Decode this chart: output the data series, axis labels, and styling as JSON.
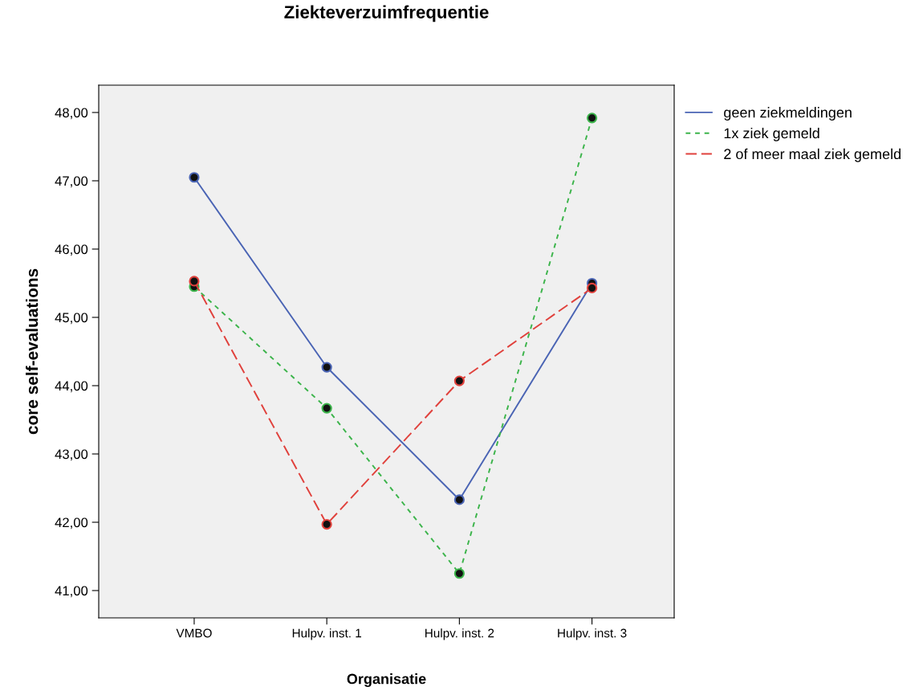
{
  "chart_data": {
    "type": "line",
    "title": "Ziekteverzuimfrequentie",
    "xlabel": "Organisatie",
    "ylabel": "core self-evaluations",
    "categories": [
      "VMBO",
      "Hulpv. inst. 1",
      "Hulpv. inst. 2",
      "Hulpv. inst. 3"
    ],
    "series": [
      {
        "name": "geen ziekmeldingen",
        "color": "#4a64b4",
        "line_style": "solid",
        "values": [
          47.05,
          44.27,
          42.33,
          45.5
        ]
      },
      {
        "name": "1x ziek gemeld",
        "color": "#3cb44b",
        "line_style": "dotted",
        "values": [
          45.45,
          43.67,
          41.25,
          47.92
        ]
      },
      {
        "name": "2 of meer maal ziek gemeld",
        "color": "#e0413c",
        "line_style": "dashed",
        "values": [
          45.53,
          41.97,
          44.07,
          45.43
        ]
      }
    ],
    "ylim": [
      40.6,
      48.4
    ],
    "yticks": [
      {
        "value": 41,
        "label": "41,00"
      },
      {
        "value": 42,
        "label": "42,00"
      },
      {
        "value": 43,
        "label": "43,00"
      },
      {
        "value": 44,
        "label": "44,00"
      },
      {
        "value": 45,
        "label": "45,00"
      },
      {
        "value": 46,
        "label": "46,00"
      },
      {
        "value": 47,
        "label": "47,00"
      },
      {
        "value": 48,
        "label": "48,00"
      }
    ],
    "marker": "circle",
    "grid": false,
    "legend": "top right"
  }
}
